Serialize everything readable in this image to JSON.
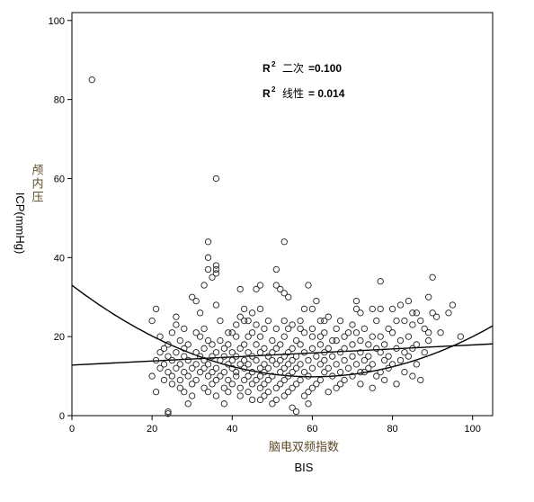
{
  "chart_data": {
    "type": "scatter",
    "xlabel_cn": "脑电双频指数",
    "xlabel_en": "BIS",
    "ylabel_cn": "颅内压",
    "ylabel_en": "ICP(mmHg)",
    "xlim": [
      0,
      105
    ],
    "ylim": [
      0,
      102
    ],
    "x_ticks": [
      0,
      20,
      40,
      60,
      80,
      100
    ],
    "y_ticks": [
      0,
      20,
      40,
      60,
      80,
      100
    ],
    "grid": false,
    "legend": {
      "quadratic_r2_label": "二次",
      "quadratic_r2_value": "=0.100",
      "linear_r2_label": "线性",
      "linear_r2_value": "= 0.014",
      "r_symbol": "R",
      "superscript": "2",
      "placement": "top-center"
    },
    "fits": {
      "quadratic": {
        "a": 33,
        "b": -0.77,
        "c": 0.0064
      },
      "linear": {
        "intercept": 12.8,
        "slope": 0.051
      }
    },
    "points": [
      [
        5,
        85
      ],
      [
        36,
        60
      ],
      [
        34,
        44
      ],
      [
        53,
        44
      ],
      [
        34,
        40
      ],
      [
        36,
        38
      ],
      [
        34,
        37
      ],
      [
        36,
        37
      ],
      [
        51,
        37
      ],
      [
        36,
        36
      ],
      [
        35,
        35
      ],
      [
        90,
        35
      ],
      [
        47,
        33
      ],
      [
        51,
        33
      ],
      [
        59,
        33
      ],
      [
        33,
        33
      ],
      [
        52,
        32
      ],
      [
        77,
        34
      ],
      [
        42,
        32
      ],
      [
        46,
        32
      ],
      [
        53,
        31
      ],
      [
        30,
        30
      ],
      [
        54,
        30
      ],
      [
        71,
        29
      ],
      [
        82,
        28
      ],
      [
        95,
        28
      ],
      [
        75,
        27
      ],
      [
        21,
        27
      ],
      [
        36,
        28
      ],
      [
        60,
        27
      ],
      [
        77,
        27
      ],
      [
        72,
        26
      ],
      [
        85,
        26
      ],
      [
        86,
        26
      ],
      [
        91,
        25
      ],
      [
        26,
        25
      ],
      [
        42,
        25
      ],
      [
        64,
        25
      ],
      [
        44,
        24
      ],
      [
        49,
        24
      ],
      [
        57,
        24
      ],
      [
        62,
        24
      ],
      [
        63,
        24
      ],
      [
        83,
        24
      ],
      [
        87,
        24
      ],
      [
        20,
        24
      ],
      [
        43,
        24
      ],
      [
        54,
        22
      ],
      [
        66,
        22
      ],
      [
        73,
        22
      ],
      [
        79,
        22
      ],
      [
        88,
        22
      ],
      [
        25,
        21
      ],
      [
        31,
        21
      ],
      [
        45,
        21
      ],
      [
        58,
        21
      ],
      [
        69,
        21
      ],
      [
        80,
        21
      ],
      [
        89,
        21
      ],
      [
        97,
        20
      ],
      [
        22,
        20
      ],
      [
        32,
        20
      ],
      [
        41,
        20
      ],
      [
        47,
        20
      ],
      [
        53,
        20
      ],
      [
        60,
        20
      ],
      [
        68,
        20
      ],
      [
        77,
        20
      ],
      [
        84,
        20
      ],
      [
        27,
        19
      ],
      [
        37,
        19
      ],
      [
        50,
        19
      ],
      [
        56,
        19
      ],
      [
        65,
        19
      ],
      [
        72,
        19
      ],
      [
        82,
        19
      ],
      [
        24,
        18
      ],
      [
        29,
        18
      ],
      [
        35,
        18
      ],
      [
        39,
        18
      ],
      [
        43,
        18
      ],
      [
        46,
        18
      ],
      [
        52,
        18
      ],
      [
        57,
        18
      ],
      [
        62,
        18
      ],
      [
        70,
        18
      ],
      [
        74,
        18
      ],
      [
        78,
        18
      ],
      [
        86,
        18
      ],
      [
        23,
        17
      ],
      [
        28,
        17
      ],
      [
        33,
        17
      ],
      [
        38,
        17
      ],
      [
        42,
        17
      ],
      [
        48,
        17
      ],
      [
        51,
        17
      ],
      [
        55,
        17
      ],
      [
        60,
        17
      ],
      [
        64,
        17
      ],
      [
        68,
        17
      ],
      [
        76,
        17
      ],
      [
        81,
        17
      ],
      [
        85,
        17
      ],
      [
        22,
        16
      ],
      [
        26,
        16
      ],
      [
        31,
        16
      ],
      [
        36,
        16
      ],
      [
        40,
        16
      ],
      [
        44,
        16
      ],
      [
        47,
        16
      ],
      [
        50,
        16
      ],
      [
        54,
        16
      ],
      [
        58,
        16
      ],
      [
        63,
        16
      ],
      [
        67,
        16
      ],
      [
        72,
        16
      ],
      [
        77,
        16
      ],
      [
        83,
        16
      ],
      [
        88,
        16
      ],
      [
        24,
        15
      ],
      [
        28,
        15
      ],
      [
        32,
        15
      ],
      [
        35,
        15
      ],
      [
        38,
        15
      ],
      [
        41,
        15
      ],
      [
        45,
        15
      ],
      [
        49,
        15
      ],
      [
        53,
        15
      ],
      [
        56,
        15
      ],
      [
        61,
        15
      ],
      [
        65,
        15
      ],
      [
        70,
        15
      ],
      [
        74,
        15
      ],
      [
        79,
        15
      ],
      [
        84,
        15
      ],
      [
        21,
        14
      ],
      [
        25,
        14
      ],
      [
        29,
        14
      ],
      [
        33,
        14
      ],
      [
        37,
        14
      ],
      [
        40,
        14
      ],
      [
        43,
        14
      ],
      [
        46,
        14
      ],
      [
        50,
        14
      ],
      [
        52,
        14
      ],
      [
        55,
        14
      ],
      [
        59,
        14
      ],
      [
        63,
        14
      ],
      [
        68,
        14
      ],
      [
        73,
        14
      ],
      [
        78,
        14
      ],
      [
        82,
        14
      ],
      [
        23,
        13
      ],
      [
        27,
        13
      ],
      [
        31,
        13
      ],
      [
        34,
        13
      ],
      [
        39,
        13
      ],
      [
        42,
        13
      ],
      [
        44,
        13
      ],
      [
        48,
        13
      ],
      [
        51,
        13
      ],
      [
        54,
        13
      ],
      [
        57,
        13
      ],
      [
        62,
        13
      ],
      [
        66,
        13
      ],
      [
        71,
        13
      ],
      [
        75,
        13
      ],
      [
        80,
        13
      ],
      [
        86,
        13
      ],
      [
        22,
        12
      ],
      [
        26,
        12
      ],
      [
        30,
        12
      ],
      [
        33,
        12
      ],
      [
        36,
        12
      ],
      [
        40,
        12
      ],
      [
        43,
        12
      ],
      [
        47,
        12
      ],
      [
        49,
        12
      ],
      [
        53,
        12
      ],
      [
        56,
        12
      ],
      [
        60,
        12
      ],
      [
        64,
        12
      ],
      [
        69,
        12
      ],
      [
        74,
        12
      ],
      [
        79,
        12
      ],
      [
        24,
        11
      ],
      [
        28,
        11
      ],
      [
        32,
        11
      ],
      [
        35,
        11
      ],
      [
        38,
        11
      ],
      [
        41,
        11
      ],
      [
        45,
        11
      ],
      [
        48,
        11
      ],
      [
        52,
        11
      ],
      [
        55,
        11
      ],
      [
        58,
        11
      ],
      [
        63,
        11
      ],
      [
        67,
        11
      ],
      [
        72,
        11
      ],
      [
        77,
        11
      ],
      [
        83,
        11
      ],
      [
        20,
        10
      ],
      [
        25,
        10
      ],
      [
        29,
        10
      ],
      [
        34,
        10
      ],
      [
        37,
        10
      ],
      [
        41,
        10
      ],
      [
        44,
        10
      ],
      [
        47,
        10
      ],
      [
        50,
        10
      ],
      [
        54,
        10
      ],
      [
        59,
        10
      ],
      [
        65,
        10
      ],
      [
        70,
        10
      ],
      [
        76,
        10
      ],
      [
        85,
        10
      ],
      [
        23,
        9
      ],
      [
        27,
        9
      ],
      [
        31,
        9
      ],
      [
        36,
        9
      ],
      [
        39,
        9
      ],
      [
        43,
        9
      ],
      [
        46,
        9
      ],
      [
        49,
        9
      ],
      [
        53,
        9
      ],
      [
        57,
        9
      ],
      [
        62,
        9
      ],
      [
        68,
        9
      ],
      [
        78,
        9
      ],
      [
        87,
        9
      ],
      [
        25,
        8
      ],
      [
        30,
        8
      ],
      [
        35,
        8
      ],
      [
        40,
        8
      ],
      [
        45,
        8
      ],
      [
        48,
        8
      ],
      [
        52,
        8
      ],
      [
        56,
        8
      ],
      [
        61,
        8
      ],
      [
        67,
        8
      ],
      [
        72,
        8
      ],
      [
        81,
        8
      ],
      [
        27,
        7
      ],
      [
        33,
        7
      ],
      [
        38,
        7
      ],
      [
        42,
        7
      ],
      [
        47,
        7
      ],
      [
        51,
        7
      ],
      [
        55,
        7
      ],
      [
        60,
        7
      ],
      [
        66,
        7
      ],
      [
        75,
        7
      ],
      [
        28,
        6
      ],
      [
        34,
        6
      ],
      [
        39,
        6
      ],
      [
        44,
        6
      ],
      [
        49,
        6
      ],
      [
        54,
        6
      ],
      [
        59,
        6
      ],
      [
        64,
        6
      ],
      [
        21,
        6
      ],
      [
        30,
        5
      ],
      [
        36,
        5
      ],
      [
        42,
        5
      ],
      [
        48,
        5
      ],
      [
        53,
        5
      ],
      [
        58,
        5
      ],
      [
        45,
        4
      ],
      [
        47,
        4
      ],
      [
        51,
        4
      ],
      [
        50,
        3
      ],
      [
        29,
        3
      ],
      [
        59,
        3
      ],
      [
        38,
        3
      ],
      [
        55,
        2
      ],
      [
        24,
        1
      ],
      [
        56,
        1
      ],
      [
        24,
        0.5
      ],
      [
        73,
        11
      ],
      [
        90,
        26
      ],
      [
        84,
        29
      ],
      [
        89,
        30
      ],
      [
        94,
        26
      ],
      [
        41,
        23
      ],
      [
        61,
        29
      ],
      [
        58,
        27
      ],
      [
        71,
        27
      ],
      [
        47,
        27
      ],
      [
        63,
        21
      ],
      [
        70,
        23
      ],
      [
        33,
        22
      ],
      [
        37,
        24
      ],
      [
        45,
        26
      ],
      [
        39,
        21
      ],
      [
        26,
        23
      ],
      [
        32,
        26
      ],
      [
        57,
        22
      ],
      [
        66,
        19
      ],
      [
        81,
        24
      ],
      [
        92,
        21
      ],
      [
        43,
        27
      ],
      [
        31,
        29
      ],
      [
        48,
        22
      ],
      [
        53,
        24
      ],
      [
        67,
        24
      ],
      [
        75,
        20
      ],
      [
        85,
        23
      ],
      [
        44,
        20
      ],
      [
        51,
        22
      ],
      [
        62,
        20
      ],
      [
        71,
        21
      ],
      [
        80,
        27
      ],
      [
        89,
        19
      ],
      [
        34,
        19
      ],
      [
        28,
        22
      ],
      [
        40,
        21
      ],
      [
        46,
        23
      ],
      [
        55,
        23
      ],
      [
        60,
        22
      ],
      [
        76,
        24
      ]
    ]
  }
}
